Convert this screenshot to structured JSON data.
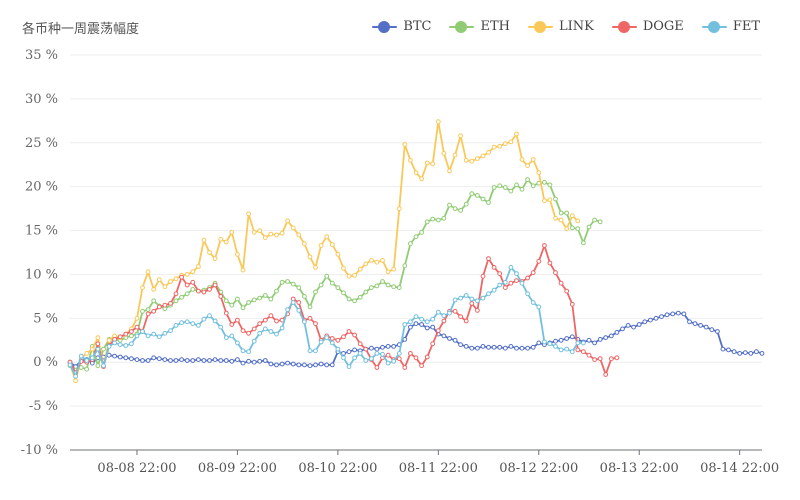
{
  "chart_data": {
    "type": "line",
    "title": "各币种一周震荡幅度",
    "xlabel": "",
    "ylabel": "",
    "ylim": [
      -10,
      35
    ],
    "y_ticks": [
      -10,
      -5,
      0,
      5,
      10,
      15,
      20,
      25,
      30,
      35
    ],
    "y_tick_labels": [
      "-10 %",
      "-5 %",
      "0 %",
      "5 %",
      "10 %",
      "15 %",
      "20 %",
      "25 %",
      "30 %",
      "35 %"
    ],
    "x_tick_labels": [
      "08-08 22:00",
      "08-09 22:00",
      "08-10 22:00",
      "08-11 22:00",
      "08-12 22:00",
      "08-13 22:00",
      "08-14 22:00"
    ],
    "x_tick_index": [
      12,
      30,
      48,
      66,
      84,
      102,
      120
    ],
    "grid": "horizontal",
    "legend_position": "top-right",
    "series": [
      {
        "name": "BTC",
        "color": "#5470c6",
        "values": [
          0,
          -0.5,
          0.2,
          0.3,
          -0.1,
          0.5,
          0.6,
          0.8,
          0.7,
          0.6,
          0.5,
          0.4,
          0.3,
          0.2,
          0.2,
          0.5,
          0.4,
          0.3,
          0.2,
          0.2,
          0.3,
          0.2,
          0.2,
          0.3,
          0.2,
          0.2,
          0.3,
          0.2,
          0.2,
          0.1,
          0.3,
          -0.1,
          0.1,
          0,
          0.1,
          0.2,
          -0.2,
          -0.3,
          -0.2,
          -0.1,
          -0.2,
          -0.3,
          -0.3,
          -0.4,
          -0.3,
          -0.2,
          -0.3,
          -0.3,
          1.2,
          1,
          1.2,
          1.4,
          1.3,
          1.5,
          1.6,
          1.5,
          1.7,
          1.8,
          1.8,
          2,
          2.6,
          4,
          4.4,
          4.3,
          3.9,
          4,
          3.2,
          3,
          2.7,
          2.5,
          2,
          1.8,
          1.6,
          1.6,
          1.8,
          1.7,
          1.7,
          1.7,
          1.6,
          1.8,
          1.6,
          1.6,
          1.6,
          1.7,
          2.2,
          2,
          2.2,
          2.4,
          2.5,
          2.7,
          2.9,
          2.6,
          2.3,
          2.5,
          2.2,
          2.6,
          2.8,
          3,
          3.4,
          3.8,
          4.2,
          4,
          4.3,
          4.6,
          4.8,
          5,
          5.2,
          5.4,
          5.5,
          5.6,
          5.5,
          4.6,
          4.4,
          4.2,
          4,
          3.7,
          3.5,
          1.5,
          1.4,
          1.2,
          1,
          1.1,
          1,
          1.2,
          1
        ]
      },
      {
        "name": "ETH",
        "color": "#91cc75",
        "values": [
          -0.4,
          -0.9,
          -0.6,
          -0.8,
          1.8,
          -0.4,
          1.5,
          2.6,
          2.6,
          2.5,
          2.8,
          3,
          3.2,
          5.8,
          6,
          7,
          6.4,
          6.1,
          6.5,
          7,
          7.4,
          7.8,
          8.3,
          8.1,
          8.2,
          8.5,
          9,
          8,
          7,
          6.5,
          7.2,
          6.2,
          6.8,
          7.1,
          7.3,
          7.6,
          7.2,
          8.1,
          9.1,
          9.2,
          8.9,
          8.5,
          7.5,
          6.3,
          8,
          8.8,
          9.8,
          9,
          8.5,
          7.9,
          7.2,
          7,
          7.4,
          8,
          8.5,
          8.7,
          9.2,
          8.8,
          8.6,
          8.5,
          11,
          13.5,
          14.3,
          14.8,
          16,
          16.3,
          16.2,
          16.4,
          17.9,
          17.5,
          17.3,
          18,
          19.2,
          19,
          18.6,
          18.2,
          19.9,
          20.1,
          19.9,
          19.5,
          20.2,
          19.7,
          20.8,
          20.1,
          20.4,
          20.5,
          20.2,
          18.6,
          17,
          17,
          15.3,
          15.2,
          13.6,
          15.4,
          16.2,
          16
        ]
      },
      {
        "name": "LINK",
        "color": "#fac858",
        "values": [
          -0.2,
          -2.1,
          0.5,
          1,
          1.5,
          2.8,
          -0.5,
          2.5,
          3,
          2.8,
          3.2,
          3.8,
          5,
          8.5,
          10.3,
          8.3,
          9.4,
          8.6,
          9.2,
          9.5,
          9.9,
          10,
          10.3,
          10.9,
          13.9,
          12.5,
          11.8,
          14,
          13.7,
          14.8,
          12.3,
          10.5,
          16.9,
          14.8,
          15,
          14.2,
          14.6,
          14.5,
          14.7,
          16.1,
          15.3,
          14.5,
          13.5,
          12,
          10.8,
          13.3,
          14.3,
          13.4,
          12.3,
          10.7,
          9.8,
          9.9,
          10.6,
          11.2,
          11.6,
          11.4,
          11.6,
          10.3,
          10.6,
          17.5,
          24.8,
          23,
          21.6,
          20.9,
          22.7,
          22.6,
          27.4,
          23.8,
          21.8,
          23.6,
          25.8,
          23,
          22.9,
          23.2,
          23.5,
          23.9,
          24.5,
          24.6,
          24.9,
          25.1,
          26,
          23.1,
          22.4,
          23.1,
          21.6,
          18.4,
          18.5,
          16.4,
          16.2,
          15.2,
          16.7,
          16.1
        ]
      },
      {
        "name": "DOGE",
        "color": "#ee6666",
        "values": [
          0,
          -1.2,
          0.1,
          0,
          0.3,
          2.1,
          -0.5,
          1.9,
          2.6,
          2.9,
          3.2,
          3.5,
          4,
          3.5,
          5.5,
          5.8,
          6.3,
          6.5,
          6.7,
          7.8,
          9.7,
          8.8,
          9.1,
          8.1,
          8,
          8.3,
          8.8,
          7.5,
          5.6,
          4.3,
          4.8,
          3.6,
          3.3,
          3.8,
          4.4,
          4.8,
          5.3,
          4.7,
          4.8,
          5.5,
          7.2,
          6.8,
          4.8,
          5,
          4.4,
          2.5,
          3,
          2.7,
          2.5,
          2.9,
          3.5,
          3.1,
          2.1,
          1.5,
          0.3,
          -0.6,
          0.5,
          0.8,
          0.3,
          0.4,
          -0.6,
          1,
          0.5,
          -0.4,
          0.6,
          2.1,
          3.6,
          4.7,
          5.8,
          5.8,
          5.2,
          4.7,
          6.7,
          5.9,
          9.8,
          11.8,
          10.8,
          10.1,
          8.5,
          9,
          9.3,
          9.2,
          9.6,
          10.2,
          11.5,
          13.3,
          11.3,
          10.2,
          9,
          8.1,
          6.6,
          1.4,
          1.2,
          0.8,
          0.3,
          0.4,
          -1.4,
          0.4,
          0.5
        ]
      },
      {
        "name": "FET",
        "color": "#73c0de",
        "values": [
          -0.3,
          -1.6,
          0.7,
          0.2,
          0.5,
          1.5,
          -0.4,
          1.8,
          2.2,
          2,
          1.9,
          2.1,
          3,
          3.5,
          3,
          3.2,
          2.9,
          3.3,
          3.6,
          4.2,
          4.5,
          4.6,
          4.4,
          4.2,
          4.9,
          5.3,
          4.7,
          4,
          2.8,
          3,
          2.2,
          1.3,
          1.2,
          2.4,
          3.3,
          3.8,
          3.5,
          3.2,
          3.9,
          6,
          6.8,
          5.9,
          4.6,
          1.3,
          1.3,
          2.3,
          2.8,
          2.2,
          1.5,
          0.5,
          -0.5,
          0.5,
          1,
          0.2,
          0.4,
          1,
          0.9,
          -0.1,
          0.1,
          1,
          4.3,
          4.6,
          5.2,
          4.9,
          4.6,
          4.9,
          5.7,
          5.3,
          5.6,
          7.1,
          7.3,
          7.6,
          7.2,
          7,
          7.3,
          7.8,
          8.2,
          8.8,
          9.1,
          10.8,
          10.1,
          9,
          7.8,
          6.8,
          6.3,
          2.3,
          2.1,
          1.8,
          1.4,
          1.5,
          1.2,
          2.2,
          2.2
        ]
      }
    ]
  }
}
